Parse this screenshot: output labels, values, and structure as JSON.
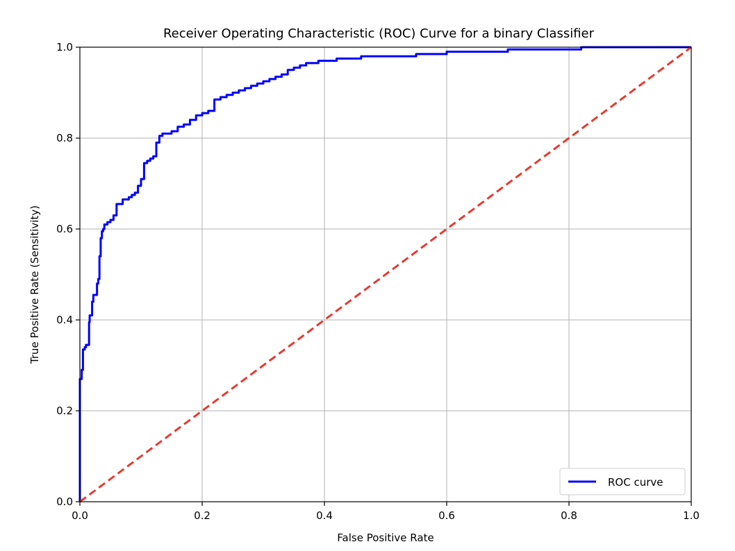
{
  "chart_data": {
    "type": "line",
    "title": "Receiver Operating Characteristic (ROC) Curve for a binary Classifier",
    "xlabel": "False Positive Rate",
    "ylabel": "True Positive Rate (Sensitivity)",
    "xlim": [
      0.0,
      1.0
    ],
    "ylim": [
      0.0,
      1.0
    ],
    "x_ticks": [
      "0.0",
      "0.2",
      "0.4",
      "0.6",
      "0.8",
      "1.0"
    ],
    "y_ticks": [
      "0.0",
      "0.2",
      "0.4",
      "0.6",
      "0.8",
      "1.0"
    ],
    "grid": true,
    "legend_position": "lower-right",
    "series": [
      {
        "name": "ROC curve",
        "color": "#0000ff",
        "style": "solid",
        "x": [
          0.0,
          0.0,
          0.003,
          0.005,
          0.008,
          0.01,
          0.015,
          0.016,
          0.02,
          0.022,
          0.026,
          0.028,
          0.03,
          0.032,
          0.034,
          0.036,
          0.038,
          0.04,
          0.045,
          0.05,
          0.055,
          0.06,
          0.065,
          0.07,
          0.075,
          0.08,
          0.085,
          0.09,
          0.095,
          0.1,
          0.105,
          0.11,
          0.115,
          0.12,
          0.125,
          0.13,
          0.135,
          0.14,
          0.15,
          0.16,
          0.17,
          0.18,
          0.19,
          0.2,
          0.21,
          0.22,
          0.23,
          0.24,
          0.25,
          0.26,
          0.27,
          0.28,
          0.29,
          0.3,
          0.31,
          0.32,
          0.33,
          0.34,
          0.35,
          0.36,
          0.37,
          0.38,
          0.39,
          0.4,
          0.42,
          0.44,
          0.46,
          0.5,
          0.55,
          0.6,
          0.65,
          0.7,
          0.8,
          0.82,
          0.9,
          1.0
        ],
        "y": [
          0.0,
          0.27,
          0.29,
          0.335,
          0.34,
          0.345,
          0.395,
          0.41,
          0.44,
          0.455,
          0.455,
          0.48,
          0.49,
          0.54,
          0.58,
          0.595,
          0.6,
          0.61,
          0.615,
          0.62,
          0.63,
          0.655,
          0.655,
          0.665,
          0.665,
          0.67,
          0.675,
          0.68,
          0.695,
          0.71,
          0.745,
          0.75,
          0.755,
          0.76,
          0.79,
          0.805,
          0.81,
          0.81,
          0.815,
          0.825,
          0.83,
          0.84,
          0.85,
          0.855,
          0.86,
          0.885,
          0.89,
          0.895,
          0.9,
          0.905,
          0.91,
          0.915,
          0.92,
          0.925,
          0.93,
          0.935,
          0.94,
          0.95,
          0.955,
          0.96,
          0.965,
          0.965,
          0.97,
          0.97,
          0.975,
          0.975,
          0.98,
          0.98,
          0.985,
          0.99,
          0.99,
          0.995,
          0.995,
          1.0,
          1.0,
          1.0
        ]
      },
      {
        "name": "",
        "color": "#e8392f",
        "style": "dashed",
        "x": [
          0.0,
          1.0
        ],
        "y": [
          0.0,
          1.0
        ]
      }
    ]
  }
}
